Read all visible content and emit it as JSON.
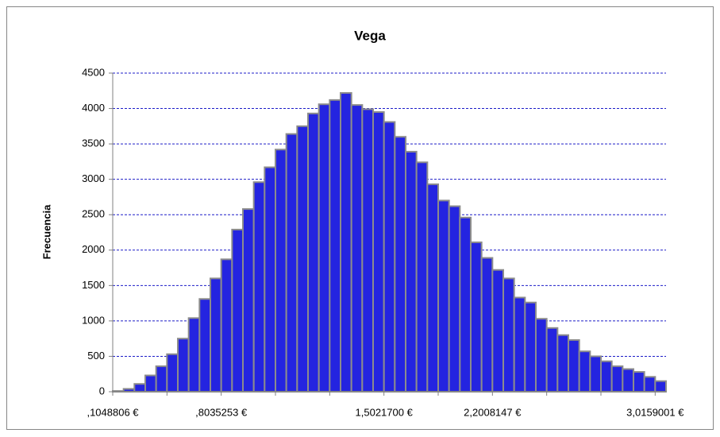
{
  "chart_data": {
    "type": "bar",
    "title": "Vega",
    "y_label": "Frecuencia",
    "categories": [
      ",1048806 €",
      null,
      null,
      null,
      null,
      null,
      null,
      null,
      null,
      null,
      ",8035253 €",
      null,
      null,
      null,
      null,
      null,
      null,
      null,
      null,
      null,
      null,
      null,
      null,
      null,
      null,
      "1,5021700 €",
      null,
      null,
      null,
      null,
      null,
      null,
      null,
      null,
      null,
      "2,2008147 €",
      null,
      null,
      null,
      null,
      null,
      null,
      null,
      null,
      null,
      null,
      null,
      null,
      null,
      null,
      "3,0159001 €"
    ],
    "values": [
      10,
      40,
      110,
      230,
      360,
      530,
      750,
      1040,
      1310,
      1600,
      1870,
      2290,
      2580,
      2960,
      3170,
      3420,
      3640,
      3750,
      3930,
      4060,
      4120,
      4220,
      4050,
      3990,
      3950,
      3810,
      3600,
      3390,
      3240,
      2930,
      2700,
      2620,
      2460,
      2110,
      1890,
      1720,
      1600,
      1330,
      1260,
      1030,
      900,
      800,
      730,
      570,
      500,
      430,
      360,
      320,
      280,
      210,
      150
    ],
    "color": "#2424e0",
    "edge_color": "#8c8c8c",
    "ylim": [
      0,
      4500
    ],
    "yticks": [
      0,
      500,
      1000,
      1500,
      2000,
      2500,
      3000,
      3500,
      4000,
      4500
    ],
    "grid": true
  }
}
